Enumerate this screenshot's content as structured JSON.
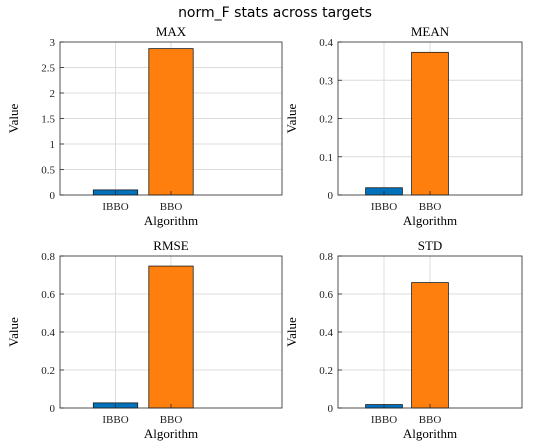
{
  "figure": {
    "title": "norm_F stats across targets"
  },
  "colors": {
    "IBBO": "#0072bd",
    "BBO": "#ff7f0e"
  },
  "chart_data": [
    {
      "type": "bar",
      "title": "MAX",
      "xlabel": "Algorithm",
      "ylabel": "Value",
      "categories": [
        "IBBO",
        "BBO"
      ],
      "values": [
        0.1,
        2.87
      ],
      "ylim": [
        0,
        3
      ],
      "yticks": [
        "0",
        "0.5",
        "1",
        "1.5",
        "2",
        "2.5",
        "3"
      ],
      "ytick_values": [
        0,
        0.5,
        1,
        1.5,
        2,
        2.5,
        3
      ],
      "grid": true
    },
    {
      "type": "bar",
      "title": "MEAN",
      "xlabel": "Algorithm",
      "ylabel": "Value",
      "categories": [
        "IBBO",
        "BBO"
      ],
      "values": [
        0.019,
        0.373
      ],
      "ylim": [
        0,
        0.4
      ],
      "yticks": [
        "0",
        "0.1",
        "0.2",
        "0.3",
        "0.4"
      ],
      "ytick_values": [
        0,
        0.1,
        0.2,
        0.3,
        0.4
      ],
      "grid": true
    },
    {
      "type": "bar",
      "title": "RMSE",
      "xlabel": "Algorithm",
      "ylabel": "Value",
      "categories": [
        "IBBO",
        "BBO"
      ],
      "values": [
        0.027,
        0.747
      ],
      "ylim": [
        0,
        0.8
      ],
      "yticks": [
        "0",
        "0.2",
        "0.4",
        "0.6",
        "0.8"
      ],
      "ytick_values": [
        0,
        0.2,
        0.4,
        0.6,
        0.8
      ],
      "grid": true
    },
    {
      "type": "bar",
      "title": "STD",
      "xlabel": "Algorithm",
      "ylabel": "Value",
      "categories": [
        "IBBO",
        "BBO"
      ],
      "values": [
        0.018,
        0.66
      ],
      "ylim": [
        0,
        0.8
      ],
      "yticks": [
        "0",
        "0.2",
        "0.4",
        "0.6",
        "0.8"
      ],
      "ytick_values": [
        0,
        0.2,
        0.4,
        0.6,
        0.8
      ],
      "grid": true
    }
  ]
}
